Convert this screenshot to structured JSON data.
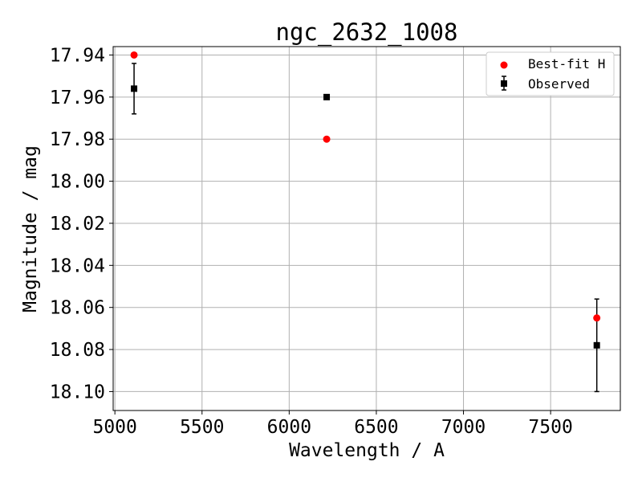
{
  "chart_data": {
    "type": "scatter",
    "title": "ngc_2632_1008",
    "xlabel": "Wavelength / A",
    "ylabel": "Magnitude / mag",
    "xlim": [
      4990,
      7900
    ],
    "ylim": [
      18.109,
      17.936
    ],
    "y_inverted": true,
    "xticks": [
      5000,
      5500,
      6000,
      6500,
      7000,
      7500
    ],
    "xtick_labels": [
      "5000",
      "5500",
      "6000",
      "6500",
      "7000",
      "7500"
    ],
    "yticks": [
      17.94,
      17.96,
      17.98,
      18.0,
      18.02,
      18.04,
      18.06,
      18.08,
      18.1
    ],
    "ytick_labels": [
      "17.94",
      "17.96",
      "17.98",
      "18.00",
      "18.02",
      "18.04",
      "18.06",
      "18.08",
      "18.10"
    ],
    "grid": true,
    "legend_position": "top-right",
    "series": [
      {
        "name": "Best-fit H",
        "marker": "circle",
        "color": "#ff0000",
        "x": [
          5110,
          6215,
          7765
        ],
        "y": [
          17.94,
          17.98,
          18.065
        ]
      },
      {
        "name": "Observed",
        "marker": "square",
        "color": "#000000",
        "x": [
          5110,
          6215,
          7765
        ],
        "y": [
          17.956,
          17.96,
          18.078
        ],
        "yerr": [
          0.012,
          0.0005,
          0.022
        ]
      }
    ]
  }
}
